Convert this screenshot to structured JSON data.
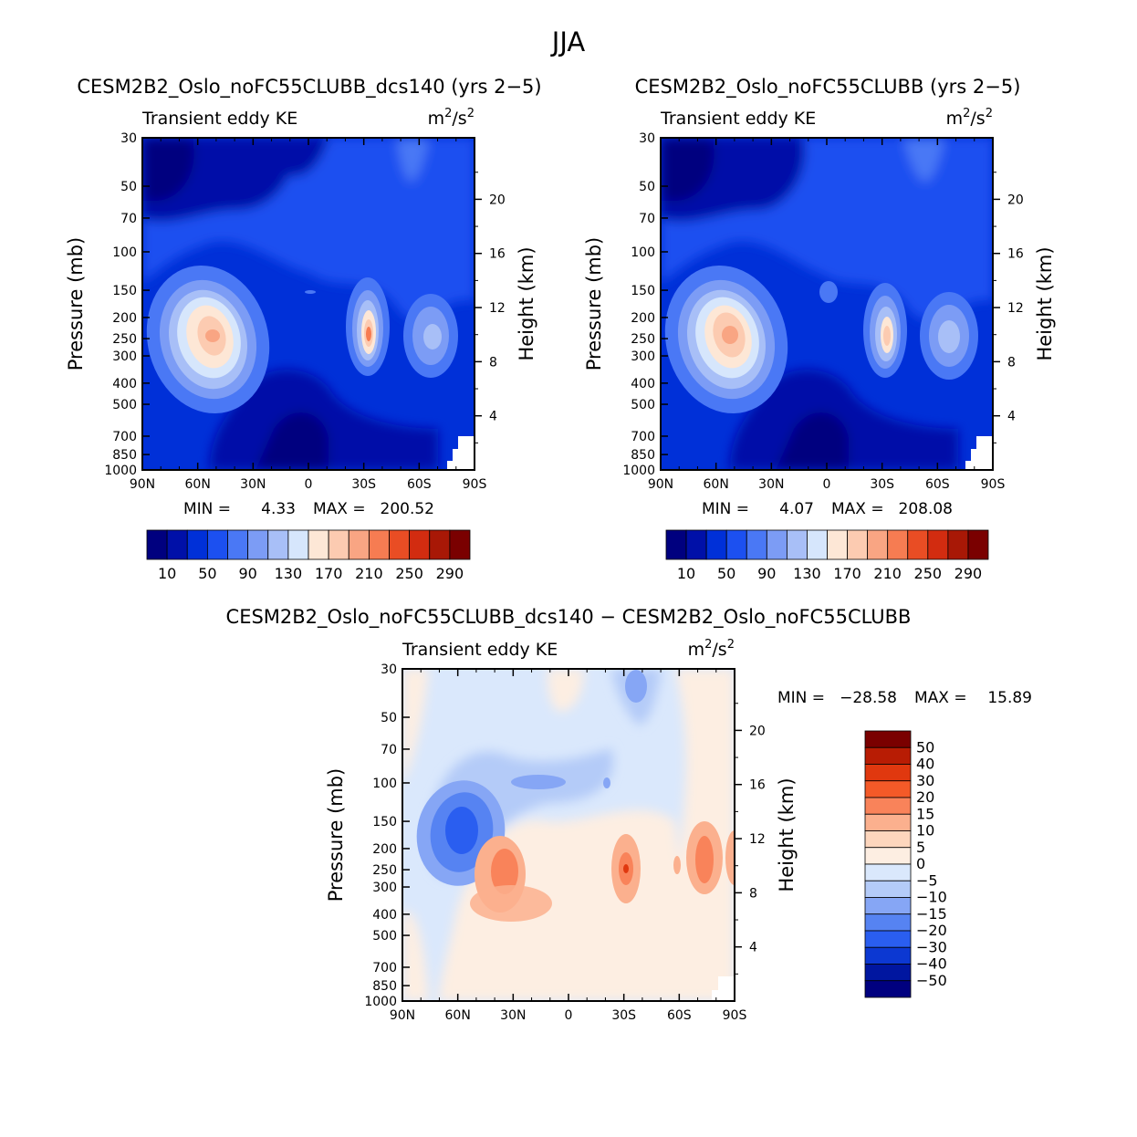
{
  "page": {
    "season": "JJA"
  },
  "chart_data": [
    {
      "id": "panel1",
      "type": "heatmap",
      "title": "CESM2B2_Oslo_noFC55CLUBB_dcs140 (yrs 2−5)",
      "subtitle_left": "Transient eddy KE",
      "units_base": "m",
      "units_exp1": "2",
      "units_mid": "/s",
      "units_exp2": "2",
      "ylabel": "Pressure (mb)",
      "ylabel_right": "Height (km)",
      "x_ticks": [
        "90N",
        "60N",
        "30N",
        "0",
        "30S",
        "60S",
        "90S"
      ],
      "y_ticks": [
        "30",
        "50",
        "70",
        "100",
        "150",
        "200",
        "250",
        "300",
        "400",
        "500",
        "700",
        "850",
        "1000"
      ],
      "y_right_ticks": [
        "20",
        "16",
        "12",
        "8",
        "4"
      ],
      "min_label": "MIN =",
      "min_value": "4.33",
      "max_label": "MAX =",
      "max_value": "200.52",
      "colorbar_levels": [
        "10",
        "50",
        "90",
        "130",
        "170",
        "210",
        "250",
        "290"
      ],
      "colorbar_colors": [
        "#00007f",
        "#0010a8",
        "#0030d8",
        "#1c50f0",
        "#4a78f5",
        "#7c9cf5",
        "#a8bff7",
        "#d6e6fc",
        "#fde7d6",
        "#fccbb1",
        "#f9a583",
        "#f67c52",
        "#e94d24",
        "#d22c10",
        "#a81806",
        "#7a0000"
      ],
      "contour_levels": [
        20,
        40,
        60,
        80,
        100,
        120,
        140,
        160,
        180,
        200
      ]
    },
    {
      "id": "panel2",
      "type": "heatmap",
      "title": "CESM2B2_Oslo_noFC55CLUBB (yrs 2−5)",
      "subtitle_left": "Transient eddy KE",
      "units_base": "m",
      "units_exp1": "2",
      "units_mid": "/s",
      "units_exp2": "2",
      "ylabel": "Pressure (mb)",
      "ylabel_right": "Height (km)",
      "x_ticks": [
        "90N",
        "60N",
        "30N",
        "0",
        "30S",
        "60S",
        "90S"
      ],
      "y_ticks": [
        "30",
        "50",
        "70",
        "100",
        "150",
        "200",
        "250",
        "300",
        "400",
        "500",
        "700",
        "850",
        "1000"
      ],
      "y_right_ticks": [
        "20",
        "16",
        "12",
        "8",
        "4"
      ],
      "min_label": "MIN =",
      "min_value": "4.07",
      "max_label": "MAX =",
      "max_value": "208.08",
      "colorbar_levels": [
        "10",
        "50",
        "90",
        "130",
        "170",
        "210",
        "250",
        "290"
      ],
      "colorbar_colors": [
        "#00007f",
        "#0010a8",
        "#0030d8",
        "#1c50f0",
        "#4a78f5",
        "#7c9cf5",
        "#a8bff7",
        "#d6e6fc",
        "#fde7d6",
        "#fccbb1",
        "#f9a583",
        "#f67c52",
        "#e94d24",
        "#d22c10",
        "#a81806",
        "#7a0000"
      ],
      "contour_levels": [
        20,
        40,
        60,
        80,
        100,
        120,
        140,
        160,
        180,
        200
      ]
    },
    {
      "id": "panel3",
      "type": "heatmap",
      "title": "CESM2B2_Oslo_noFC55CLUBB_dcs140 − CESM2B2_Oslo_noFC55CLUBB",
      "subtitle_left": "Transient eddy KE",
      "units_base": "m",
      "units_exp1": "2",
      "units_mid": "/s",
      "units_exp2": "2",
      "ylabel": "Pressure (mb)",
      "ylabel_right": "Height (km)",
      "x_ticks": [
        "90N",
        "60N",
        "30N",
        "0",
        "30S",
        "60S",
        "90S"
      ],
      "y_ticks": [
        "30",
        "50",
        "70",
        "100",
        "150",
        "200",
        "250",
        "300",
        "400",
        "500",
        "700",
        "850",
        "1000"
      ],
      "y_right_ticks": [
        "20",
        "16",
        "12",
        "8",
        "4"
      ],
      "min_label": "MIN =",
      "min_value": "−28.58",
      "max_label": "MAX =",
      "max_value": "15.89",
      "colorbar_levels": [
        "50",
        "40",
        "30",
        "20",
        "15",
        "10",
        "5",
        "0",
        "−5",
        "−10",
        "−15",
        "−20",
        "−30",
        "−40",
        "−50"
      ],
      "colorbar_colors": [
        "#7a0000",
        "#b81c04",
        "#e0380f",
        "#f45a28",
        "#f9835a",
        "#fbb08e",
        "#fdd6bd",
        "#fdeee2",
        "#dae8fc",
        "#b4cbf8",
        "#86a6f5",
        "#5683f2",
        "#2a5ef0",
        "#0c38d2",
        "#0016a0",
        "#00007f"
      ]
    }
  ]
}
